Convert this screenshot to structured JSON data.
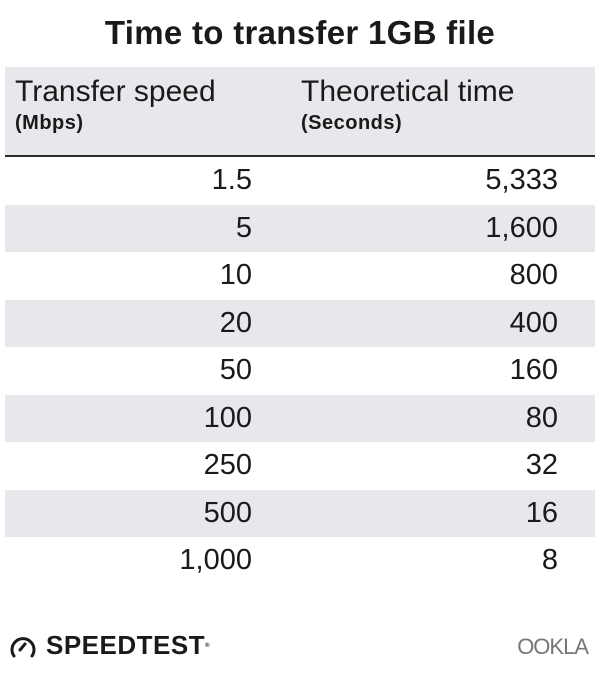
{
  "chart_data": {
    "type": "table",
    "title": "Time to transfer 1GB file",
    "columns": [
      {
        "label": "Transfer speed",
        "unit": "(Mbps)"
      },
      {
        "label": "Theoretical time",
        "unit": "(Seconds)"
      }
    ],
    "rows": [
      [
        "1.5",
        "5,333"
      ],
      [
        "5",
        "1,600"
      ],
      [
        "10",
        "800"
      ],
      [
        "20",
        "400"
      ],
      [
        "50",
        "160"
      ],
      [
        "100",
        "80"
      ],
      [
        "250",
        "32"
      ],
      [
        "500",
        "16"
      ],
      [
        "1,000",
        "8"
      ]
    ],
    "colors": {
      "header_bg": "#e8e8ec",
      "stripe_bg": "#e8e8ec",
      "text": "#1a1a1a"
    }
  },
  "footer": {
    "left_logo": "SPEEDTEST",
    "right_logo": "OOKLA"
  }
}
